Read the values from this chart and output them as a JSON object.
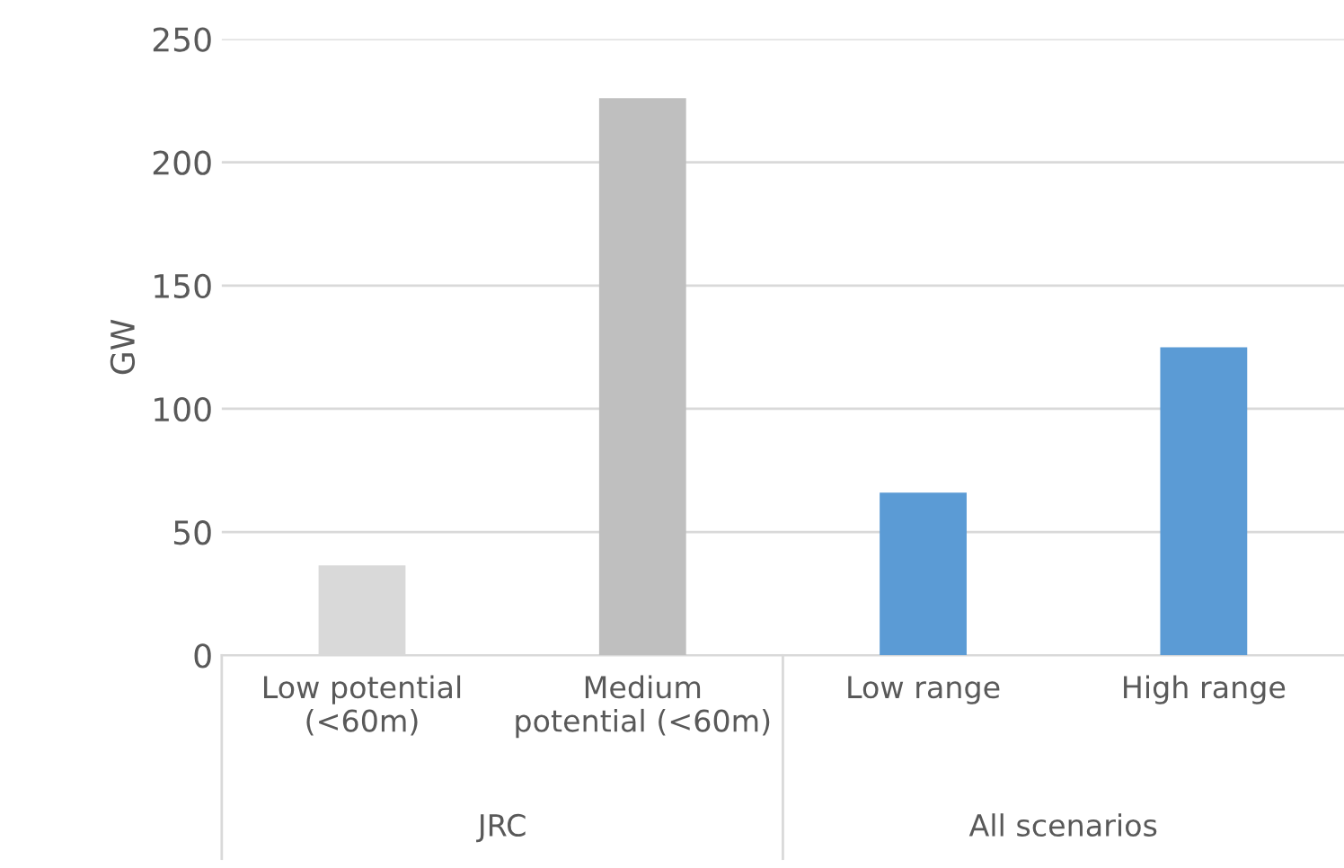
{
  "chart_data": {
    "type": "bar",
    "categories": [
      "Low potential\n(<60m)",
      "Medium\npotential (<60m)",
      "Low range",
      "High range"
    ],
    "values": [
      36.5,
      226,
      66,
      125
    ],
    "colors": [
      "#d9d9d9",
      "#bfbfbf",
      "#5b9bd5",
      "#5b9bd5"
    ],
    "ylabel": "GW",
    "ylim": [
      0,
      250
    ],
    "yticks": [
      0,
      50,
      100,
      150,
      200,
      250
    ],
    "grid": "y",
    "annotations": [
      "JRC",
      "All scenarios"
    ]
  }
}
